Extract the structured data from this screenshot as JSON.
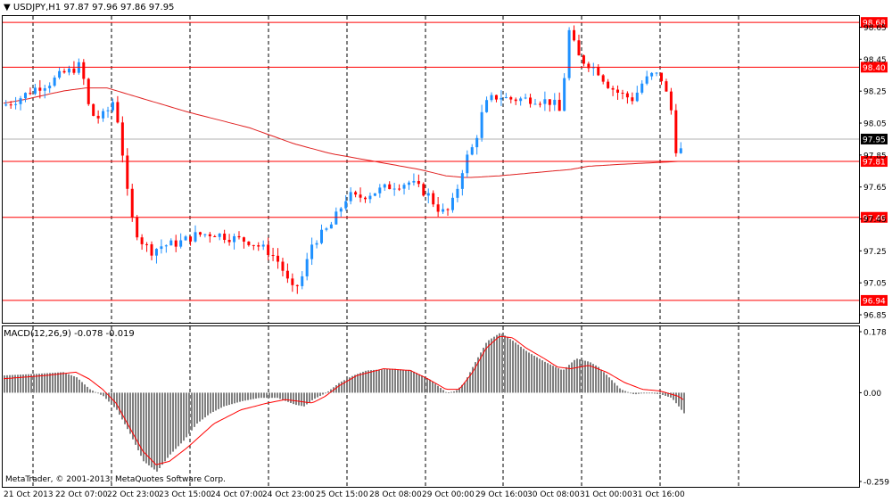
{
  "header": {
    "symbol_label": "USDJPY,H1",
    "ohlc": "97.87 97.96 97.86 97.95"
  },
  "macd": {
    "label": "MACD(12,26,9) -0.078 -0.019",
    "axis_ticks": [
      "0.178",
      "0.00",
      "-0.259"
    ]
  },
  "copyright": "MetaTrader, © 2001-2013, MetaQuotes Software Corp.",
  "chart_data": [
    {
      "type": "candlestick",
      "title": "USDJPY,H1",
      "ylim": [
        96.8,
        98.72
      ],
      "y_ticks": [
        96.85,
        97.05,
        97.25,
        97.45,
        97.65,
        97.85,
        98.05,
        98.25,
        98.45,
        98.65
      ],
      "current_price": 97.95,
      "current_price_label": "97.95",
      "horizontal_levels": [
        {
          "value": 98.68,
          "label": "98.68"
        },
        {
          "value": 98.4,
          "label": "98.40"
        },
        {
          "value": 97.81,
          "label": "97.81"
        },
        {
          "value": 97.46,
          "label": "97.46"
        },
        {
          "value": 96.94,
          "label": "96.94"
        }
      ],
      "moving_average": {
        "x": [
          0,
          30,
          70,
          96,
          120,
          150,
          210,
          280,
          330,
          370,
          400,
          440,
          470,
          500,
          520,
          530,
          560,
          600,
          640,
          660,
          690,
          760
        ],
        "y": [
          98.17,
          98.2,
          98.25,
          98.27,
          98.27,
          98.22,
          98.12,
          98.02,
          97.92,
          97.86,
          97.83,
          97.79,
          97.76,
          97.72,
          97.71,
          97.71,
          97.72,
          97.74,
          97.76,
          97.78,
          97.79,
          97.81
        ]
      },
      "x_tick_labels": [
        "21 Oct 2013",
        "22 Oct 07:00",
        "22 Oct 23:00",
        "23 Oct 15:00",
        "24 Oct 07:00",
        "24 Oct 23:00",
        "25 Oct 15:00",
        "28 Oct 08:00",
        "29 Oct 00:00",
        "29 Oct 16:00",
        "30 Oct 08:00",
        "31 Oct 00:00",
        "31 Oct 16:00"
      ],
      "price_path": {
        "x": [
          0,
          20,
          40,
          55,
          70,
          80,
          86,
          92,
          96,
          104,
          112,
          120,
          128,
          134,
          140,
          144,
          150,
          160,
          170,
          180,
          200,
          220,
          240,
          260,
          280,
          300,
          310,
          320,
          326,
          332,
          340,
          350,
          360,
          370,
          380,
          390,
          400,
          420,
          440,
          460,
          470,
          480,
          490,
          500,
          510,
          516,
          522,
          530,
          536,
          542,
          550,
          560,
          570,
          580,
          600,
          620,
          630,
          636,
          640,
          646,
          650,
          660,
          670,
          680,
          690,
          700,
          710,
          720,
          730,
          740,
          746,
          752,
          756,
          760,
          766
        ],
        "y": [
          98.15,
          98.2,
          98.27,
          98.3,
          98.36,
          98.38,
          98.4,
          98.42,
          98.2,
          98.1,
          98.08,
          98.12,
          98.2,
          98.0,
          97.75,
          97.55,
          97.4,
          97.3,
          97.25,
          97.28,
          97.3,
          97.35,
          97.36,
          97.33,
          97.31,
          97.25,
          97.2,
          97.1,
          97.0,
          97.02,
          97.1,
          97.3,
          97.35,
          97.4,
          97.5,
          97.6,
          97.58,
          97.62,
          97.66,
          97.68,
          97.64,
          97.6,
          97.52,
          97.48,
          97.58,
          97.72,
          97.82,
          97.9,
          98.0,
          98.15,
          98.2,
          98.22,
          98.2,
          98.2,
          98.2,
          98.18,
          98.1,
          98.65,
          98.6,
          98.5,
          98.45,
          98.42,
          98.38,
          98.3,
          98.25,
          98.22,
          98.2,
          98.3,
          98.35,
          98.35,
          98.25,
          98.15,
          97.95,
          97.82,
          97.93
        ]
      },
      "candle_count": 140
    },
    {
      "type": "bar",
      "title": "MACD(12,26,9)",
      "ylim": [
        -0.259,
        0.178
      ],
      "y_ticks": [
        0.178,
        0.0,
        -0.259
      ],
      "histogram_path": {
        "x": [
          0,
          40,
          70,
          85,
          100,
          115,
          130,
          145,
          160,
          175,
          190,
          205,
          220,
          235,
          250,
          270,
          290,
          310,
          330,
          340,
          350,
          365,
          380,
          395,
          410,
          440,
          460,
          480,
          500,
          510,
          520,
          530,
          545,
          560,
          575,
          590,
          610,
          630,
          645,
          660,
          670,
          680,
          695,
          710,
          725,
          740,
          752,
          760,
          766
        ],
        "y": [
          0.05,
          0.055,
          0.06,
          0.045,
          0.01,
          -0.01,
          -0.05,
          -0.12,
          -0.2,
          -0.23,
          -0.18,
          -0.14,
          -0.09,
          -0.06,
          -0.04,
          -0.025,
          -0.015,
          -0.015,
          -0.035,
          -0.04,
          -0.02,
          0.0,
          0.03,
          0.05,
          0.065,
          0.07,
          0.065,
          0.04,
          0.0,
          0.005,
          0.03,
          0.08,
          0.15,
          0.175,
          0.15,
          0.12,
          0.09,
          0.065,
          0.1,
          0.09,
          0.075,
          0.05,
          0.01,
          -0.005,
          0.0,
          -0.005,
          -0.015,
          -0.04,
          -0.06
        ]
      },
      "signal_path": {
        "x": [
          0,
          50,
          85,
          100,
          115,
          130,
          145,
          160,
          175,
          190,
          210,
          240,
          270,
          300,
          320,
          335,
          350,
          365,
          380,
          400,
          430,
          460,
          480,
          500,
          515,
          530,
          545,
          560,
          575,
          590,
          610,
          625,
          640,
          660,
          680,
          700,
          720,
          740,
          760,
          766
        ],
        "y": [
          0.04,
          0.05,
          0.06,
          0.04,
          0.01,
          -0.03,
          -0.1,
          -0.17,
          -0.21,
          -0.2,
          -0.16,
          -0.09,
          -0.05,
          -0.03,
          -0.02,
          -0.025,
          -0.03,
          -0.01,
          0.02,
          0.05,
          0.07,
          0.065,
          0.04,
          0.01,
          0.01,
          0.06,
          0.13,
          0.165,
          0.16,
          0.13,
          0.1,
          0.075,
          0.07,
          0.08,
          0.06,
          0.03,
          0.01,
          0.005,
          -0.01,
          -0.02
        ]
      }
    }
  ]
}
